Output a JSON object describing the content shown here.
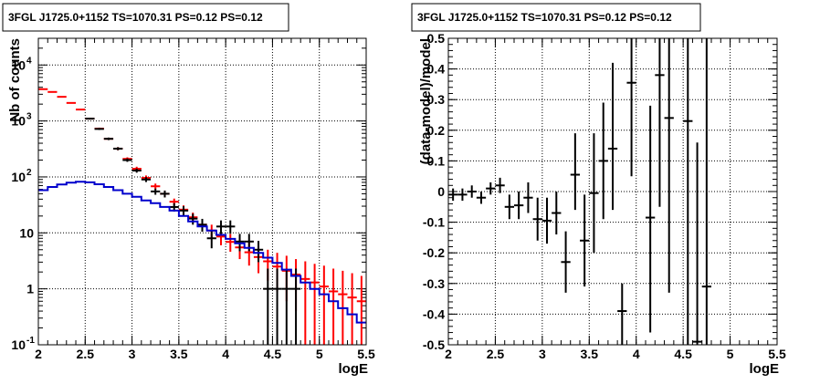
{
  "chart_data": [
    {
      "type": "scatter",
      "title": "3FGL J1725.0+1152 TS=1070.31 PS=0.12 PS=0.12",
      "xlabel": "logE",
      "ylabel": "Nb of counts",
      "xlim": [
        2,
        5.5
      ],
      "ylim": [
        0.1,
        30000
      ],
      "yscale": "log",
      "grid": true,
      "x_ticks": [
        "2",
        "2.5",
        "3",
        "3.5",
        "4",
        "4.5",
        "5",
        "5.5"
      ],
      "y_ticks": [
        {
          "value": 0.1,
          "label": "10",
          "exp": "-1"
        },
        {
          "value": 1,
          "label": "1",
          "exp": ""
        },
        {
          "value": 10,
          "label": "10",
          "exp": ""
        },
        {
          "value": 100,
          "label": "10",
          "exp": "2"
        },
        {
          "value": 1000,
          "label": "10",
          "exp": "3"
        },
        {
          "value": 10000,
          "label": "10",
          "exp": "4"
        }
      ],
      "series": [
        {
          "color": "#ff0000",
          "style": "errorbar",
          "x": [
            2.05,
            2.15,
            2.25,
            2.35,
            2.45,
            2.55,
            2.65,
            2.75,
            2.85,
            2.95,
            3.05,
            3.15,
            3.25,
            3.35,
            3.45,
            3.55,
            3.65,
            3.75,
            3.85,
            3.95,
            4.05,
            4.15,
            4.25,
            4.35,
            4.45,
            4.55,
            4.65,
            4.75,
            4.85,
            4.95,
            5.05,
            5.15,
            5.25,
            5.35,
            5.45
          ],
          "y": [
            3700,
            3300,
            2700,
            2100,
            1600,
            1100,
            730,
            480,
            320,
            210,
            140,
            96,
            68,
            50,
            36,
            26,
            19,
            14,
            11,
            8.6,
            6.9,
            5.5,
            4.5,
            3.7,
            3.1,
            2.5,
            2.1,
            1.8,
            1.5,
            1.3,
            1.1,
            0.9,
            0.8,
            0.7,
            0.6
          ],
          "y_low": [
            3640,
            3240,
            2650,
            2060,
            1560,
            1070,
            700,
            460,
            300,
            196,
            128,
            86,
            60,
            43,
            31,
            21,
            15,
            10.8,
            8,
            6,
            4.6,
            3.4,
            2.6,
            1.9,
            1.4,
            0.9,
            0.6,
            0.4,
            0.1,
            0.1,
            0.1,
            0.1,
            0.1,
            0.1,
            0.1
          ],
          "y_high": [
            3760,
            3360,
            2750,
            2140,
            1640,
            1130,
            760,
            500,
            340,
            224,
            152,
            106,
            76,
            57,
            41,
            31,
            23,
            17.5,
            14,
            11.5,
            9.5,
            8,
            6.8,
            5.8,
            5,
            4.4,
            3.9,
            3.4,
            3.1,
            2.8,
            2.6,
            2.3,
            2.1,
            1.9,
            1.7
          ]
        },
        {
          "color": "#000000",
          "style": "errorbar",
          "x": [
            2.55,
            2.65,
            2.75,
            2.85,
            2.95,
            3.05,
            3.15,
            3.25,
            3.35,
            3.45,
            3.55,
            3.65,
            3.75,
            3.85,
            3.95,
            4.05,
            4.15,
            4.25,
            4.35,
            4.45,
            4.55,
            4.65,
            4.75
          ],
          "y": [
            1100,
            720,
            480,
            320,
            200,
            130,
            90,
            55,
            50,
            29,
            25,
            18,
            14,
            8,
            13,
            13,
            7,
            7,
            5,
            1,
            1,
            1,
            1
          ],
          "y_low": [
            1060,
            690,
            455,
            300,
            186,
            119,
            81,
            48,
            43,
            24,
            20,
            14,
            10.5,
            5.3,
            9.6,
            9.6,
            4.7,
            4.7,
            3,
            0.1,
            0.1,
            0.1,
            0.1
          ],
          "y_high": [
            1140,
            750,
            505,
            340,
            214,
            141,
            99,
            62,
            57,
            34,
            30,
            22,
            17.8,
            11,
            16.7,
            16.7,
            9.6,
            9.6,
            7.2,
            2.3,
            2.3,
            2.3,
            2.3
          ]
        },
        {
          "color": "#0000cc",
          "style": "step",
          "edges": [
            2.0,
            2.1,
            2.2,
            2.3,
            2.4,
            2.5,
            2.6,
            2.7,
            2.8,
            2.9,
            3.0,
            3.1,
            3.2,
            3.3,
            3.4,
            3.5,
            3.6,
            3.7,
            3.8,
            3.9,
            4.0,
            4.1,
            4.2,
            4.3,
            4.4,
            4.5,
            4.6,
            4.7,
            4.8,
            4.9,
            5.0,
            5.1,
            5.2,
            5.3,
            5.4,
            5.5
          ],
          "values": [
            58,
            66,
            73,
            79,
            82,
            80,
            74,
            66,
            58,
            50,
            44,
            38,
            34,
            29,
            25,
            20,
            16,
            13,
            11,
            9.2,
            7.8,
            6.5,
            5.4,
            4.4,
            3.6,
            2.9,
            2.2,
            1.7,
            1.3,
            1.0,
            0.8,
            0.6,
            0.45,
            0.35,
            0.25
          ]
        }
      ]
    },
    {
      "type": "scatter",
      "title": "3FGL J1725.0+1152 TS=1070.31 PS=0.12 PS=0.12",
      "xlabel": "logE",
      "ylabel": "(data-model)/model",
      "xlim": [
        2,
        5.5
      ],
      "ylim": [
        -0.5,
        0.5
      ],
      "yscale": "linear",
      "grid": true,
      "x_ticks": [
        "2",
        "2.5",
        "3",
        "3.5",
        "4",
        "4.5",
        "5",
        "5.5"
      ],
      "y_ticks": [
        "-0.5",
        "-0.4",
        "-0.3",
        "-0.2",
        "-0.1",
        "0",
        "0.1",
        "0.2",
        "0.3",
        "0.4",
        "0.5"
      ],
      "series": [
        {
          "color": "#000000",
          "style": "errorbar",
          "x": [
            2.05,
            2.15,
            2.25,
            2.35,
            2.45,
            2.55,
            2.65,
            2.75,
            2.85,
            2.95,
            3.05,
            3.15,
            3.25,
            3.35,
            3.45,
            3.55,
            3.65,
            3.75,
            3.85,
            3.95,
            4.15,
            4.25,
            4.35,
            4.55,
            4.65,
            4.75
          ],
          "y": [
            -0.01,
            -0.01,
            0.0,
            -0.02,
            0.01,
            0.02,
            -0.05,
            -0.045,
            -0.02,
            -0.09,
            -0.095,
            -0.07,
            -0.23,
            0.055,
            -0.16,
            -0.005,
            0.1,
            0.14,
            -0.39,
            0.355,
            -0.085,
            0.38,
            0.24,
            0.23,
            -0.49,
            -0.31
          ],
          "y_low": [
            -0.03,
            -0.03,
            -0.02,
            -0.04,
            -0.01,
            -0.005,
            -0.09,
            -0.09,
            -0.07,
            -0.16,
            -0.17,
            -0.14,
            -0.33,
            -0.06,
            -0.31,
            -0.2,
            -0.09,
            -0.06,
            -0.5,
            0.05,
            -0.46,
            -0.05,
            -0.33,
            -0.5,
            -0.5,
            -0.5
          ],
          "y_high": [
            0.01,
            0.01,
            0.02,
            0.0,
            0.03,
            0.045,
            -0.01,
            0.0,
            0.03,
            -0.02,
            -0.02,
            0.0,
            -0.13,
            0.19,
            -0.01,
            0.19,
            0.29,
            0.42,
            -0.3,
            0.5,
            0.28,
            0.5,
            0.5,
            0.5,
            0.16,
            0.5
          ]
        }
      ]
    }
  ]
}
